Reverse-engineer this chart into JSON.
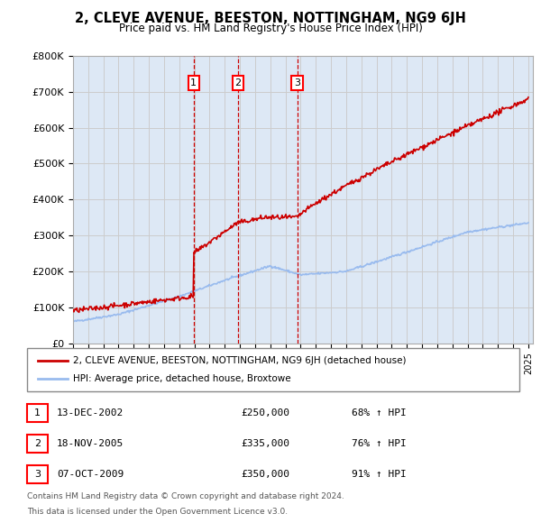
{
  "title": "2, CLEVE AVENUE, BEESTON, NOTTINGHAM, NG9 6JH",
  "subtitle": "Price paid vs. HM Land Registry's House Price Index (HPI)",
  "x_start_year": 1995,
  "x_end_year": 2025,
  "y_min": 0,
  "y_max": 800000,
  "y_ticks": [
    0,
    100000,
    200000,
    300000,
    400000,
    500000,
    600000,
    700000,
    800000
  ],
  "y_tick_labels": [
    "£0",
    "£100K",
    "£200K",
    "£300K",
    "£400K",
    "£500K",
    "£600K",
    "£700K",
    "£800K"
  ],
  "sale_color": "#cc0000",
  "hpi_color": "#99bbee",
  "vline_color": "#cc0000",
  "grid_color": "#cccccc",
  "bg_color": "#dde8f5",
  "sales": [
    {
      "year": 2002.95,
      "price": 250000,
      "label": "1",
      "date": "13-DEC-2002",
      "pct": "68%"
    },
    {
      "year": 2005.88,
      "price": 335000,
      "label": "2",
      "date": "18-NOV-2005",
      "pct": "76%"
    },
    {
      "year": 2009.77,
      "price": 350000,
      "label": "3",
      "date": "07-OCT-2009",
      "pct": "91%"
    }
  ],
  "legend_line1": "2, CLEVE AVENUE, BEESTON, NOTTINGHAM, NG9 6JH (detached house)",
  "legend_line2": "HPI: Average price, detached house, Broxtowe",
  "footnote1": "Contains HM Land Registry data © Crown copyright and database right 2024.",
  "footnote2": "This data is licensed under the Open Government Licence v3.0."
}
